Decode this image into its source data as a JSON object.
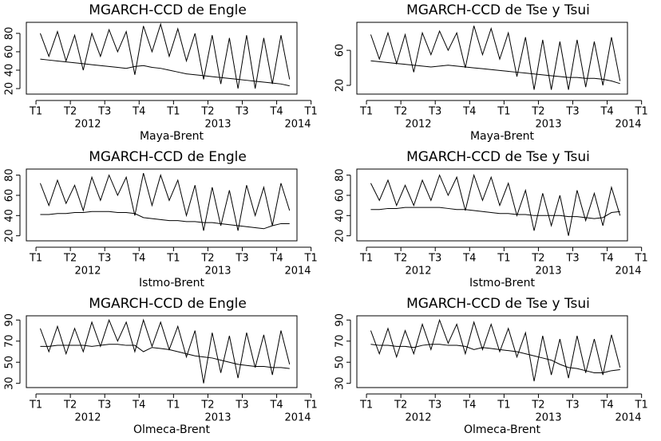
{
  "chart_data": [
    {
      "type": "line",
      "title": "MGARCH-CCD de Engle",
      "x_label": "Maya-Brent",
      "x": [
        0.125,
        0.375,
        0.625,
        0.875,
        1.125,
        1.375,
        1.625,
        1.875,
        2.125,
        2.375,
        2.625,
        2.875,
        3.125,
        3.375,
        3.625,
        3.875,
        4.125,
        4.375,
        4.625,
        4.875,
        5.125,
        5.375,
        5.625,
        5.875,
        6.125,
        6.375,
        6.625,
        6.875,
        7.125,
        7.375
      ],
      "xlim": [
        -0.28,
        7.59
      ],
      "xticks": [
        {
          "value": 0,
          "label": "T1"
        },
        {
          "value": 1,
          "label": "T2"
        },
        {
          "value": 2,
          "label": "T3"
        },
        {
          "value": 3,
          "label": "T4"
        },
        {
          "value": 4,
          "label": "T1"
        },
        {
          "value": 5,
          "label": "T2"
        },
        {
          "value": 6,
          "label": "T3"
        },
        {
          "value": 7,
          "label": "T4"
        },
        {
          "value": 8,
          "label": "T1"
        }
      ],
      "year_labels": [
        "2012",
        "2013",
        "2014"
      ],
      "ylim": [
        14,
        92
      ],
      "yticks": [
        20,
        40,
        60,
        80
      ],
      "series": [
        {
          "color": "#000000",
          "values": [
            80,
            55,
            82,
            50,
            78,
            40,
            80,
            55,
            84,
            60,
            82,
            35,
            88,
            60,
            90,
            55,
            85,
            50,
            80,
            30,
            78,
            25,
            75,
            20,
            78,
            20,
            75,
            25,
            78,
            30
          ]
        },
        {
          "color": "#000000",
          "values": [
            52,
            51,
            50,
            49,
            48,
            47,
            46,
            45,
            44,
            43,
            42,
            44,
            45,
            43,
            42,
            40,
            38,
            36,
            35,
            34,
            33,
            32,
            31,
            30,
            29,
            28,
            27,
            26,
            25,
            23
          ]
        }
      ]
    },
    {
      "type": "line",
      "title": "MGARCH-CCD de Tse y Tsui",
      "x_label": "Maya-Brent",
      "x": [
        0.125,
        0.375,
        0.625,
        0.875,
        1.125,
        1.375,
        1.625,
        1.875,
        2.125,
        2.375,
        2.625,
        2.875,
        3.125,
        3.375,
        3.625,
        3.875,
        4.125,
        4.375,
        4.625,
        4.875,
        5.125,
        5.375,
        5.625,
        5.875,
        6.125,
        6.375,
        6.625,
        6.875,
        7.125,
        7.375
      ],
      "xlim": [
        -0.28,
        7.59
      ],
      "xticks": [
        {
          "value": 0,
          "label": "T1"
        },
        {
          "value": 1,
          "label": "T2"
        },
        {
          "value": 2,
          "label": "T3"
        },
        {
          "value": 3,
          "label": "T4"
        },
        {
          "value": 4,
          "label": "T1"
        },
        {
          "value": 5,
          "label": "T2"
        },
        {
          "value": 6,
          "label": "T3"
        },
        {
          "value": 7,
          "label": "T4"
        },
        {
          "value": 8,
          "label": "T1"
        }
      ],
      "year_labels": [
        "2012",
        "2013",
        "2014"
      ],
      "ylim": [
        10,
        92
      ],
      "yticks": [
        20,
        60
      ],
      "series": [
        {
          "color": "#000000",
          "values": [
            78,
            50,
            80,
            45,
            78,
            35,
            80,
            55,
            82,
            60,
            80,
            40,
            88,
            55,
            85,
            50,
            80,
            30,
            75,
            15,
            72,
            15,
            70,
            15,
            72,
            18,
            70,
            20,
            75,
            25
          ]
        },
        {
          "color": "#000000",
          "values": [
            48,
            47,
            46,
            45,
            44,
            43,
            42,
            41,
            42,
            43,
            42,
            41,
            40,
            39,
            38,
            37,
            36,
            35,
            34,
            33,
            32,
            31,
            30,
            29,
            29,
            28,
            28,
            27,
            25,
            22
          ]
        }
      ]
    },
    {
      "type": "line",
      "title": "MGARCH-CCD de Engle",
      "x_label": "Istmo-Brent",
      "x": [
        0.125,
        0.375,
        0.625,
        0.875,
        1.125,
        1.375,
        1.625,
        1.875,
        2.125,
        2.375,
        2.625,
        2.875,
        3.125,
        3.375,
        3.625,
        3.875,
        4.125,
        4.375,
        4.625,
        4.875,
        5.125,
        5.375,
        5.625,
        5.875,
        6.125,
        6.375,
        6.625,
        6.875,
        7.125,
        7.375
      ],
      "xlim": [
        -0.28,
        7.59
      ],
      "xticks": [
        {
          "value": 0,
          "label": "T1"
        },
        {
          "value": 1,
          "label": "T2"
        },
        {
          "value": 2,
          "label": "T3"
        },
        {
          "value": 3,
          "label": "T4"
        },
        {
          "value": 4,
          "label": "T1"
        },
        {
          "value": 5,
          "label": "T2"
        },
        {
          "value": 6,
          "label": "T3"
        },
        {
          "value": 7,
          "label": "T4"
        },
        {
          "value": 8,
          "label": "T1"
        }
      ],
      "year_labels": [
        "2012",
        "2013",
        "2014"
      ],
      "ylim": [
        15,
        86
      ],
      "yticks": [
        20,
        40,
        60,
        80
      ],
      "series": [
        {
          "color": "#000000",
          "values": [
            72,
            50,
            75,
            52,
            70,
            45,
            78,
            55,
            80,
            60,
            78,
            40,
            82,
            50,
            80,
            55,
            75,
            40,
            70,
            25,
            68,
            30,
            65,
            25,
            70,
            40,
            68,
            30,
            72,
            45
          ]
        },
        {
          "color": "#000000",
          "values": [
            41,
            41,
            42,
            42,
            43,
            43,
            44,
            44,
            44,
            43,
            43,
            42,
            38,
            37,
            36,
            35,
            35,
            34,
            34,
            33,
            33,
            32,
            31,
            30,
            29,
            28,
            27,
            30,
            32,
            32
          ]
        }
      ]
    },
    {
      "type": "line",
      "title": "MGARCH-CCD de Tse y Tsui",
      "x_label": "Istmo-Brent",
      "x": [
        0.125,
        0.375,
        0.625,
        0.875,
        1.125,
        1.375,
        1.625,
        1.875,
        2.125,
        2.375,
        2.625,
        2.875,
        3.125,
        3.375,
        3.625,
        3.875,
        4.125,
        4.375,
        4.625,
        4.875,
        5.125,
        5.375,
        5.625,
        5.875,
        6.125,
        6.375,
        6.625,
        6.875,
        7.125,
        7.375
      ],
      "xlim": [
        -0.28,
        7.59
      ],
      "xticks": [
        {
          "value": 0,
          "label": "T1"
        },
        {
          "value": 1,
          "label": "T2"
        },
        {
          "value": 2,
          "label": "T3"
        },
        {
          "value": 3,
          "label": "T4"
        },
        {
          "value": 4,
          "label": "T1"
        },
        {
          "value": 5,
          "label": "T2"
        },
        {
          "value": 6,
          "label": "T3"
        },
        {
          "value": 7,
          "label": "T4"
        },
        {
          "value": 8,
          "label": "T1"
        }
      ],
      "year_labels": [
        "2012",
        "2013",
        "2014"
      ],
      "ylim": [
        15,
        86
      ],
      "yticks": [
        20,
        40,
        60,
        80
      ],
      "series": [
        {
          "color": "#000000",
          "values": [
            72,
            55,
            75,
            50,
            70,
            50,
            75,
            55,
            80,
            60,
            78,
            45,
            80,
            55,
            78,
            50,
            72,
            40,
            65,
            25,
            62,
            30,
            60,
            20,
            65,
            35,
            62,
            30,
            68,
            40
          ]
        },
        {
          "color": "#000000",
          "values": [
            46,
            46,
            47,
            47,
            48,
            48,
            48,
            48,
            48,
            47,
            46,
            46,
            45,
            44,
            43,
            42,
            42,
            41,
            41,
            40,
            40,
            40,
            40,
            39,
            39,
            38,
            37,
            38,
            43,
            44
          ]
        }
      ]
    },
    {
      "type": "line",
      "title": "MGARCH-CCD de Engle",
      "x_label": "Olmeca-Brent",
      "x": [
        0.125,
        0.375,
        0.625,
        0.875,
        1.125,
        1.375,
        1.625,
        1.875,
        2.125,
        2.375,
        2.625,
        2.875,
        3.125,
        3.375,
        3.625,
        3.875,
        4.125,
        4.375,
        4.625,
        4.875,
        5.125,
        5.375,
        5.625,
        5.875,
        6.125,
        6.375,
        6.625,
        6.875,
        7.125,
        7.375
      ],
      "xlim": [
        -0.28,
        7.59
      ],
      "xticks": [
        {
          "value": 0,
          "label": "T1"
        },
        {
          "value": 1,
          "label": "T2"
        },
        {
          "value": 2,
          "label": "T3"
        },
        {
          "value": 3,
          "label": "T4"
        },
        {
          "value": 4,
          "label": "T1"
        },
        {
          "value": 5,
          "label": "T2"
        },
        {
          "value": 6,
          "label": "T3"
        },
        {
          "value": 7,
          "label": "T4"
        },
        {
          "value": 8,
          "label": "T1"
        }
      ],
      "year_labels": [
        "2012",
        "2013",
        "2014"
      ],
      "ylim": [
        26,
        94
      ],
      "yticks": [
        30,
        50,
        70,
        90
      ],
      "series": [
        {
          "color": "#000000",
          "values": [
            82,
            60,
            84,
            58,
            82,
            60,
            88,
            65,
            90,
            70,
            88,
            60,
            90,
            65,
            88,
            62,
            84,
            55,
            80,
            30,
            78,
            40,
            75,
            35,
            78,
            45,
            76,
            38,
            80,
            48
          ]
        },
        {
          "color": "#000000",
          "values": [
            65,
            65,
            66,
            66,
            66,
            66,
            65,
            66,
            67,
            67,
            66,
            66,
            60,
            64,
            63,
            62,
            60,
            58,
            56,
            55,
            54,
            52,
            50,
            48,
            47,
            46,
            46,
            45,
            45,
            44
          ]
        }
      ]
    },
    {
      "type": "line",
      "title": "MGARCH-CCD de Tse y Tsui",
      "x_label": "Olmeca-Brent",
      "x": [
        0.125,
        0.375,
        0.625,
        0.875,
        1.125,
        1.375,
        1.625,
        1.875,
        2.125,
        2.375,
        2.625,
        2.875,
        3.125,
        3.375,
        3.625,
        3.875,
        4.125,
        4.375,
        4.625,
        4.875,
        5.125,
        5.375,
        5.625,
        5.875,
        6.125,
        6.375,
        6.625,
        6.875,
        7.125,
        7.375
      ],
      "xlim": [
        -0.28,
        7.59
      ],
      "xticks": [
        {
          "value": 0,
          "label": "T1"
        },
        {
          "value": 1,
          "label": "T2"
        },
        {
          "value": 2,
          "label": "T3"
        },
        {
          "value": 3,
          "label": "T4"
        },
        {
          "value": 4,
          "label": "T1"
        },
        {
          "value": 5,
          "label": "T2"
        },
        {
          "value": 6,
          "label": "T3"
        },
        {
          "value": 7,
          "label": "T4"
        },
        {
          "value": 8,
          "label": "T1"
        }
      ],
      "year_labels": [
        "2012",
        "2013",
        "2014"
      ],
      "ylim": [
        26,
        94
      ],
      "yticks": [
        30,
        50,
        70,
        90
      ],
      "series": [
        {
          "color": "#000000",
          "values": [
            80,
            58,
            82,
            55,
            80,
            58,
            86,
            62,
            90,
            68,
            86,
            58,
            88,
            62,
            86,
            60,
            82,
            55,
            78,
            32,
            75,
            38,
            72,
            35,
            75,
            40,
            72,
            38,
            76,
            45
          ]
        },
        {
          "color": "#000000",
          "values": [
            67,
            66,
            66,
            65,
            65,
            64,
            66,
            67,
            67,
            66,
            66,
            65,
            62,
            64,
            63,
            62,
            61,
            60,
            58,
            56,
            54,
            52,
            48,
            45,
            44,
            42,
            40,
            40,
            42,
            43
          ]
        }
      ]
    }
  ]
}
